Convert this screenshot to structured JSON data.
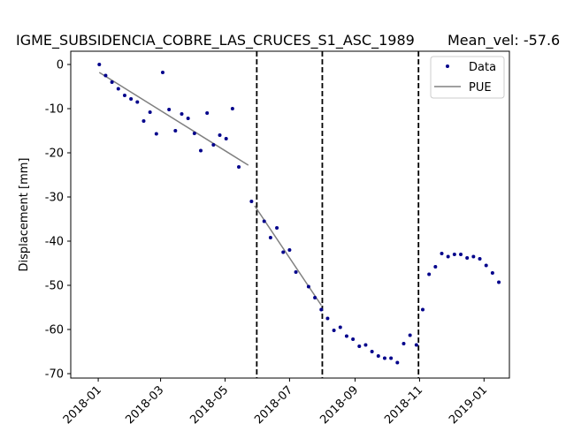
{
  "chart_data": {
    "type": "scatter",
    "title": "IGME_SUBSIDENCIA_COBRE_LAS_CRUCES_S1_ASC_1989",
    "subtitle": "Mean_vel: -57.6",
    "xlabel": "",
    "ylabel": "Displacement [mm]",
    "xlim": [
      "2017-12-06",
      "2019-01-25"
    ],
    "ylim": [
      -71,
      3
    ],
    "x_ticks": [
      "2018-01",
      "2018-03",
      "2018-05",
      "2018-07",
      "2018-09",
      "2018-11",
      "2019-01"
    ],
    "y_ticks": [
      0,
      -10,
      -20,
      -30,
      -40,
      -50,
      -60,
      -70
    ],
    "grid": false,
    "legend": {
      "position": "upper right",
      "entries": [
        "Data",
        "PUE"
      ]
    },
    "colors": {
      "data": "#00008b",
      "fit": "#808080",
      "breaks": "#000000"
    },
    "series": [
      {
        "name": "Data",
        "style": "markers",
        "points": [
          [
            "2018-01-02",
            0.0
          ],
          [
            "2018-01-08",
            -2.5
          ],
          [
            "2018-01-14",
            -4.0
          ],
          [
            "2018-01-20",
            -5.5
          ],
          [
            "2018-01-26",
            -7.0
          ],
          [
            "2018-02-01",
            -7.8
          ],
          [
            "2018-02-07",
            -8.5
          ],
          [
            "2018-02-13",
            -12.8
          ],
          [
            "2018-02-19",
            -10.8
          ],
          [
            "2018-02-25",
            -15.7
          ],
          [
            "2018-03-03",
            -1.8
          ],
          [
            "2018-03-09",
            -10.2
          ],
          [
            "2018-03-15",
            -15.0
          ],
          [
            "2018-03-21",
            -11.2
          ],
          [
            "2018-03-27",
            -12.2
          ],
          [
            "2018-04-02",
            -15.6
          ],
          [
            "2018-04-08",
            -19.5
          ],
          [
            "2018-04-14",
            -11.0
          ],
          [
            "2018-04-20",
            -18.2
          ],
          [
            "2018-04-26",
            -16.0
          ],
          [
            "2018-05-02",
            -16.8
          ],
          [
            "2018-05-08",
            -10.0
          ],
          [
            "2018-05-14",
            -23.2
          ],
          [
            "2018-05-26",
            -31.0
          ],
          [
            "2018-06-07",
            -35.5
          ],
          [
            "2018-06-13",
            -39.2
          ],
          [
            "2018-06-19",
            -37.0
          ],
          [
            "2018-06-25",
            -42.5
          ],
          [
            "2018-07-01",
            -42.0
          ],
          [
            "2018-07-07",
            -47.0
          ],
          [
            "2018-07-19",
            -50.3
          ],
          [
            "2018-07-25",
            -52.8
          ],
          [
            "2018-07-31",
            -55.5
          ],
          [
            "2018-08-06",
            -57.5
          ],
          [
            "2018-08-12",
            -60.2
          ],
          [
            "2018-08-18",
            -59.5
          ],
          [
            "2018-08-24",
            -61.5
          ],
          [
            "2018-08-30",
            -62.2
          ],
          [
            "2018-09-05",
            -63.8
          ],
          [
            "2018-09-11",
            -63.5
          ],
          [
            "2018-09-17",
            -65.0
          ],
          [
            "2018-09-23",
            -66.0
          ],
          [
            "2018-09-29",
            -66.5
          ],
          [
            "2018-10-05",
            -66.5
          ],
          [
            "2018-10-11",
            -67.5
          ],
          [
            "2018-10-17",
            -63.2
          ],
          [
            "2018-10-23",
            -61.3
          ],
          [
            "2018-10-29",
            -63.5
          ],
          [
            "2018-11-04",
            -55.5
          ],
          [
            "2018-11-10",
            -47.5
          ],
          [
            "2018-11-16",
            -45.8
          ],
          [
            "2018-11-22",
            -42.8
          ],
          [
            "2018-11-28",
            -43.5
          ],
          [
            "2018-12-04",
            -43.0
          ],
          [
            "2018-12-10",
            -43.0
          ],
          [
            "2018-12-16",
            -43.8
          ],
          [
            "2018-12-22",
            -43.5
          ],
          [
            "2018-12-28",
            -44.0
          ],
          [
            "2019-01-03",
            -45.5
          ],
          [
            "2019-01-09",
            -47.2
          ],
          [
            "2019-01-15",
            -49.3
          ]
        ]
      },
      {
        "name": "PUE",
        "style": "line",
        "segments": [
          [
            [
              "2018-01-02",
              -1.8
            ],
            [
              "2018-05-23",
              -22.8
            ]
          ],
          [
            "2018-05-29",
            -32.0
          ],
          [
            "2018-07-31",
            -54.5
          ]
        ]
      }
    ],
    "vertical_lines": [
      "2018-05-31",
      "2018-08-01",
      "2018-10-31"
    ]
  }
}
